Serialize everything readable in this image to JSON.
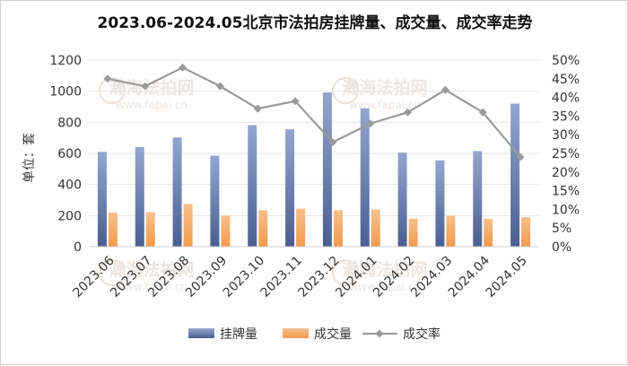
{
  "chart_data": {
    "type": "bar",
    "title": "2023.06-2024.05北京市法拍房挂牌量、成交量、成交率走势",
    "ylabel": "单位：套",
    "categories": [
      "2023.06",
      "2023.07",
      "2023.08",
      "2023.09",
      "2023.10",
      "2023.11",
      "2023.12",
      "2024.01",
      "2024.02",
      "2024.03",
      "2024.04",
      "2024.05"
    ],
    "series": [
      {
        "name": "挂牌量",
        "kind": "bar",
        "axis": "left",
        "color": "#4a5f90",
        "values": [
          610,
          640,
          703,
          585,
          782,
          755,
          992,
          890,
          605,
          555,
          615,
          920
        ]
      },
      {
        "name": "成交量",
        "kind": "bar",
        "axis": "left",
        "color": "#f39a4a",
        "values": [
          220,
          222,
          275,
          200,
          235,
          245,
          235,
          240,
          180,
          200,
          180,
          190
        ]
      },
      {
        "name": "成交率",
        "kind": "line",
        "axis": "right",
        "color": "#9a9a9a",
        "values": [
          0.45,
          0.43,
          0.48,
          0.43,
          0.37,
          0.39,
          0.28,
          0.33,
          0.36,
          0.42,
          0.36,
          0.24
        ]
      }
    ],
    "left_axis": {
      "ylim": [
        0,
        1200
      ],
      "ticks": [
        "0",
        "200",
        "400",
        "600",
        "800",
        "1000",
        "1200"
      ]
    },
    "right_axis": {
      "ylim": [
        0,
        0.5
      ],
      "ticks": [
        "0%",
        "5%",
        "10%",
        "15%",
        "20%",
        "25%",
        "30%",
        "35%",
        "40%",
        "45%",
        "50%"
      ]
    },
    "grid": true,
    "legend": {
      "position": "bottom",
      "items": [
        "挂牌量",
        "成交量",
        "成交率"
      ]
    },
    "watermarks": [
      "瀚海法拍网",
      "www.fapai.cn"
    ]
  }
}
